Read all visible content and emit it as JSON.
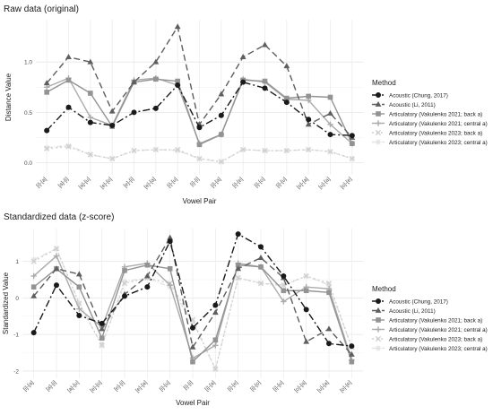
{
  "chart_data": [
    {
      "type": "line",
      "title": "Raw data (original)",
      "xlabel": "Vowel Pair",
      "ylabel": "Distance Value",
      "categories": [
        "[i]-[a]",
        "[a]-[i]",
        "[a]-[u]",
        "[e]-[o]",
        "[e]-[i]",
        "[e]-[a]",
        "[i]-[u]",
        "[i]-[i]",
        "[i]-[a]",
        "[i]-[e]",
        "[i]-[o]",
        "[i]-[u]",
        "[o]-[a]",
        "[u]-[a]",
        "[o]-[e]"
      ],
      "yticks": [
        0.0,
        0.5,
        1.0
      ],
      "ytick_labels": [
        "0.0",
        "0.5",
        "1.0"
      ],
      "ylim": [
        -0.12,
        1.42
      ],
      "grid": true,
      "legend_position": "right",
      "legend_title": "Method",
      "series": [
        {
          "name": "Acoustic (Chung, 2017)",
          "values": [
            0.32,
            0.55,
            0.4,
            0.37,
            0.5,
            0.54,
            0.77,
            0.35,
            0.47,
            0.8,
            0.74,
            0.6,
            0.43,
            0.28,
            0.27
          ]
        },
        {
          "name": "Acoustic (Li, 2011)",
          "values": [
            0.79,
            1.05,
            1.0,
            0.51,
            0.8,
            1.0,
            1.35,
            0.38,
            0.68,
            1.05,
            1.17,
            0.96,
            0.38,
            0.49,
            0.25
          ]
        },
        {
          "name": "Articulatory (Vakulenko 2021; back a)",
          "values": [
            0.7,
            0.82,
            0.69,
            0.36,
            0.8,
            0.83,
            0.81,
            0.18,
            0.28,
            0.82,
            0.81,
            0.64,
            0.66,
            0.65,
            0.19
          ]
        },
        {
          "name": "Articulatory (Vakulenko 2021; central a)",
          "values": [
            0.75,
            0.84,
            0.45,
            0.37,
            0.82,
            0.84,
            0.77,
            0.19,
            0.28,
            0.83,
            0.8,
            0.63,
            0.62,
            0.38,
            0.19
          ]
        },
        {
          "name": "Articulatory (Vakulenko 2023; back a)",
          "values": [
            0.14,
            0.16,
            0.08,
            0.04,
            0.12,
            0.13,
            0.13,
            0.04,
            0.01,
            0.13,
            0.12,
            0.12,
            0.13,
            0.11,
            0.04
          ]
        },
        {
          "name": "Articulatory (Vakulenko 2023; central a)",
          "values": [
            0.15,
            0.17,
            0.08,
            0.04,
            0.12,
            0.13,
            0.12,
            0.04,
            0.01,
            0.13,
            0.12,
            0.12,
            0.13,
            0.11,
            0.04
          ]
        }
      ]
    },
    {
      "type": "line",
      "title": "Standardized data (z-score)",
      "xlabel": "Vowel Pair",
      "ylabel": "Standardized Value",
      "categories": [
        "[i]-[a]",
        "[a]-[i]",
        "[a]-[u]",
        "[e]-[o]",
        "[e]-[i]",
        "[e]-[a]",
        "[i]-[u]",
        "[i]-[i]",
        "[i]-[a]",
        "[i]-[e]",
        "[i]-[o]",
        "[i]-[u]",
        "[o]-[a]",
        "[u]-[a]",
        "[o]-[e]"
      ],
      "yticks": [
        -2,
        -1,
        0,
        1
      ],
      "ytick_labels": [
        "-2",
        "-1",
        "0",
        "1"
      ],
      "ylim": [
        -2.2,
        1.9
      ],
      "grid": true,
      "legend_position": "right",
      "legend_title": "Method",
      "series": [
        {
          "name": "Acoustic (Chung, 2017)",
          "values": [
            -0.95,
            0.35,
            -0.48,
            -0.7,
            0.05,
            0.3,
            1.55,
            -0.82,
            -0.2,
            1.75,
            1.4,
            0.6,
            -0.32,
            -1.25,
            -1.32
          ]
        },
        {
          "name": "Acoustic (Li, 2011)",
          "values": [
            0.05,
            0.8,
            0.65,
            -0.85,
            0.1,
            0.6,
            1.65,
            -1.35,
            -0.4,
            0.8,
            1.1,
            0.55,
            -1.2,
            -0.85,
            -1.55
          ]
        },
        {
          "name": "Articulatory (Vakulenko 2021; back a)",
          "values": [
            0.3,
            0.8,
            0.3,
            -1.1,
            0.75,
            0.9,
            0.8,
            -1.75,
            -1.15,
            0.9,
            0.85,
            0.2,
            0.2,
            0.15,
            -1.75
          ]
        },
        {
          "name": "Articulatory (Vakulenko 2021; central a)",
          "values": [
            0.6,
            1.15,
            -0.3,
            -0.8,
            0.85,
            0.95,
            0.35,
            -1.65,
            -1.3,
            0.95,
            0.85,
            -0.1,
            0.3,
            0.25,
            -1.7
          ]
        },
        {
          "name": "Articulatory (Vakulenko 2023; back a)",
          "values": [
            1.0,
            1.35,
            -0.15,
            -1.3,
            0.4,
            0.55,
            0.4,
            -0.6,
            -1.95,
            0.55,
            0.4,
            0.35,
            0.6,
            0.4,
            -1.35
          ]
        },
        {
          "name": "Articulatory (Vakulenko 2023; central a)",
          "values": [
            1.05,
            1.35,
            -0.15,
            -1.3,
            0.45,
            0.55,
            0.3,
            -0.65,
            -1.95,
            0.55,
            0.4,
            0.35,
            0.6,
            0.35,
            -1.35
          ]
        }
      ]
    }
  ],
  "series_styles": [
    {
      "color": "#1a1a1a",
      "dash": "8,3,2,3",
      "marker": "circle"
    },
    {
      "color": "#5e5e5e",
      "dash": "7,4",
      "marker": "triangle"
    },
    {
      "color": "#939393",
      "dash": "",
      "marker": "square"
    },
    {
      "color": "#ababab",
      "dash": "",
      "marker": "plus"
    },
    {
      "color": "#cfcfcf",
      "dash": "2,3",
      "marker": "cross"
    },
    {
      "color": "#e3e3e3",
      "dash": "6,2,1,2",
      "marker": "asterisk"
    }
  ]
}
